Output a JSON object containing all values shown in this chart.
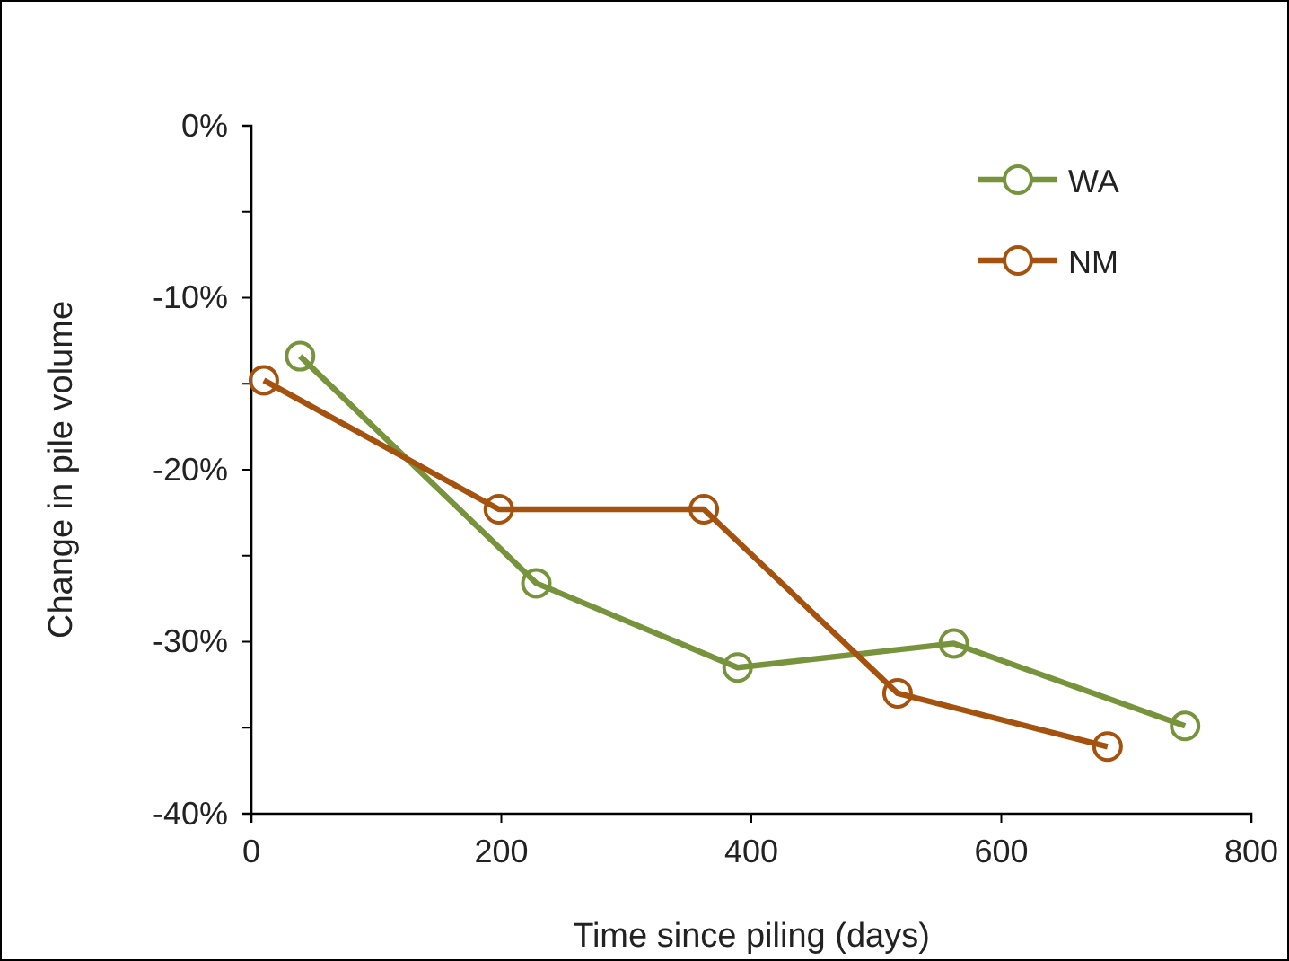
{
  "chart_data": {
    "type": "line",
    "xlabel": "Time since piling (days)",
    "ylabel": "Change in pile volume",
    "xlim": [
      0,
      800
    ],
    "xticks": [
      0,
      200,
      400,
      600,
      800
    ],
    "ylim": [
      -40,
      0
    ],
    "yticks": [
      {
        "value": -40,
        "label": "-40%"
      },
      {
        "value": -35,
        "label": null
      },
      {
        "value": -30,
        "label": "-30%"
      },
      {
        "value": -25,
        "label": null
      },
      {
        "value": -20,
        "label": "-20%"
      },
      {
        "value": -15,
        "label": null
      },
      {
        "value": -10,
        "label": "-10%"
      },
      {
        "value": -5,
        "label": null
      },
      {
        "value": 0,
        "label": "0%"
      }
    ],
    "grid": false,
    "legend": "top right",
    "marker": "circle",
    "line_style": "solid",
    "series": [
      {
        "name": "WA",
        "color": "#77933c",
        "x": [
          39,
          228,
          389,
          562,
          747
        ],
        "values": [
          -13.4,
          -26.6,
          -31.5,
          -30.1,
          -34.9
        ]
      },
      {
        "name": "NM",
        "color": "#a5520f",
        "x": [
          10,
          198,
          362,
          517,
          685
        ],
        "values": [
          -14.8,
          -22.3,
          -22.3,
          -33.0,
          -36.1
        ]
      }
    ]
  }
}
